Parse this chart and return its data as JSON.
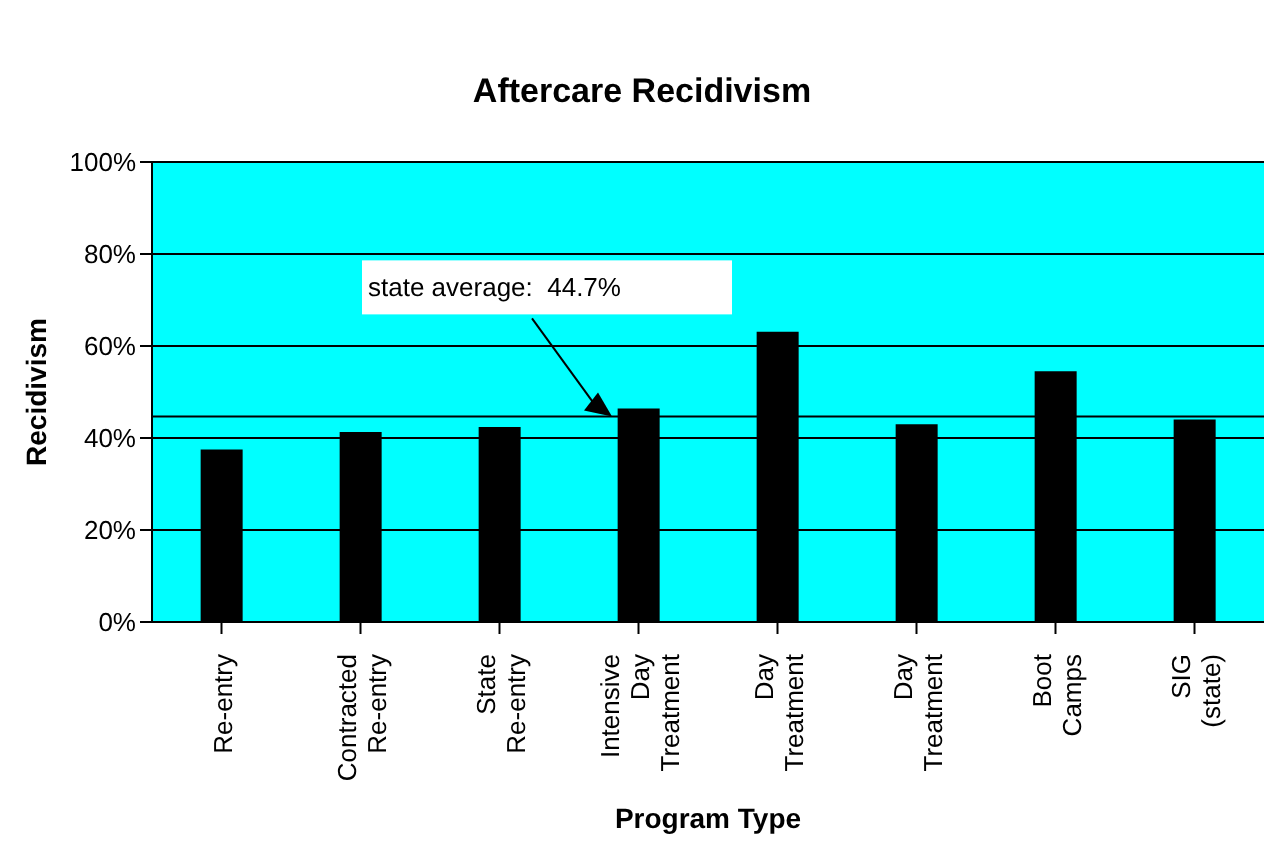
{
  "chart_data": {
    "type": "bar",
    "title": "Aftercare Recidivism",
    "xlabel": "Program Type",
    "ylabel": "Recidivism",
    "categories": [
      "Re-entry",
      "Contracted Re-entry",
      "State Re-entry",
      "Intensive Day Treatment",
      "Day Treatment",
      "Day Treatment",
      "Boot Camps",
      "SIG (state)"
    ],
    "values": [
      37.5,
      41.3,
      42.4,
      46.4,
      63.1,
      43.0,
      54.5,
      44.0
    ],
    "color": "#000000",
    "ylim": [
      0,
      100
    ],
    "yticks": [
      {
        "value": 0,
        "label": "0%"
      },
      {
        "value": 20,
        "label": "20%"
      },
      {
        "value": 40,
        "label": "40%"
      },
      {
        "value": 60,
        "label": "60%"
      },
      {
        "value": 80,
        "label": "80%"
      },
      {
        "value": 100,
        "label": "100%"
      }
    ],
    "grid": "y",
    "ref_lines": [
      {
        "axis": "y",
        "value": 44.7,
        "label": "state average:  44.7%",
        "color": "#000000"
      }
    ]
  }
}
